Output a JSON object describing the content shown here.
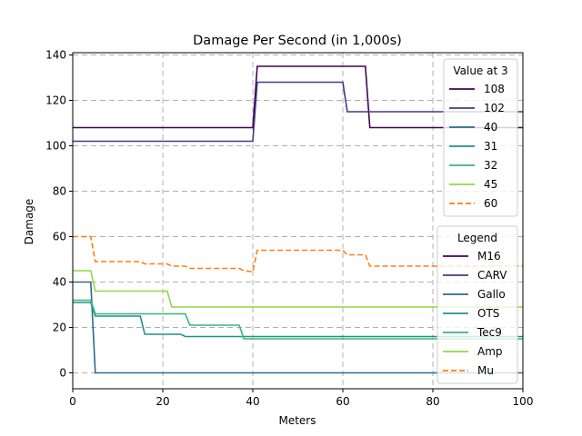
{
  "chart_data": {
    "type": "line",
    "title": "Damage Per Second (in 1,000s)",
    "xlabel": "Meters",
    "ylabel": "Damage",
    "xlim": [
      0,
      100
    ],
    "ylim": [
      -7,
      141
    ],
    "xticks": [
      0,
      20,
      40,
      60,
      80,
      100
    ],
    "yticks": [
      0,
      20,
      40,
      60,
      80,
      100,
      120,
      140
    ],
    "grid": true,
    "series": [
      {
        "name": "M16",
        "color": "#440154",
        "style": "solid",
        "value_at_3": "108",
        "points": [
          [
            0,
            108
          ],
          [
            40,
            108
          ],
          [
            41,
            135
          ],
          [
            65,
            135
          ],
          [
            66,
            108
          ],
          [
            100,
            108
          ]
        ]
      },
      {
        "name": "CARV",
        "color": "#443983",
        "style": "solid",
        "value_at_3": "102",
        "points": [
          [
            0,
            102
          ],
          [
            40,
            102
          ],
          [
            41,
            128
          ],
          [
            60,
            128
          ],
          [
            61,
            115
          ],
          [
            100,
            115
          ]
        ]
      },
      {
        "name": "Gallo",
        "color": "#31688e",
        "style": "solid",
        "value_at_3": "40",
        "points": [
          [
            0,
            40
          ],
          [
            4,
            40
          ],
          [
            5,
            0
          ],
          [
            100,
            0
          ]
        ]
      },
      {
        "name": "OTS",
        "color": "#21918c",
        "style": "solid",
        "value_at_3": "31",
        "points": [
          [
            0,
            31
          ],
          [
            4,
            31
          ],
          [
            5,
            25
          ],
          [
            15,
            25
          ],
          [
            16,
            17
          ],
          [
            24,
            17
          ],
          [
            25,
            16
          ],
          [
            100,
            16
          ]
        ]
      },
      {
        "name": "Tec9",
        "color": "#35b779",
        "style": "solid",
        "value_at_3": "32",
        "points": [
          [
            0,
            32
          ],
          [
            4,
            32
          ],
          [
            5,
            26
          ],
          [
            25,
            26
          ],
          [
            26,
            21
          ],
          [
            37,
            21
          ],
          [
            38,
            15
          ],
          [
            100,
            15
          ]
        ]
      },
      {
        "name": "Amp",
        "color": "#90d743",
        "style": "solid",
        "value_at_3": "45",
        "points": [
          [
            0,
            45
          ],
          [
            4,
            45
          ],
          [
            5,
            36
          ],
          [
            21,
            36
          ],
          [
            22,
            29
          ],
          [
            100,
            29
          ]
        ]
      },
      {
        "name": "Mu",
        "color": "#ff7f0e",
        "style": "dashed",
        "value_at_3": "60",
        "points": [
          [
            0,
            60
          ],
          [
            4,
            60
          ],
          [
            5,
            49
          ],
          [
            15,
            49
          ],
          [
            16,
            48
          ],
          [
            21,
            48
          ],
          [
            22,
            47
          ],
          [
            25,
            47
          ],
          [
            26,
            46
          ],
          [
            37,
            46
          ],
          [
            38,
            45
          ],
          [
            40,
            44.5
          ],
          [
            41,
            54
          ],
          [
            60,
            54
          ],
          [
            61,
            52
          ],
          [
            65,
            52
          ],
          [
            66,
            47
          ],
          [
            100,
            47
          ]
        ]
      }
    ],
    "legend_values_title": "Value at 3",
    "legend_title": "Legend",
    "legend_placement": "right"
  }
}
